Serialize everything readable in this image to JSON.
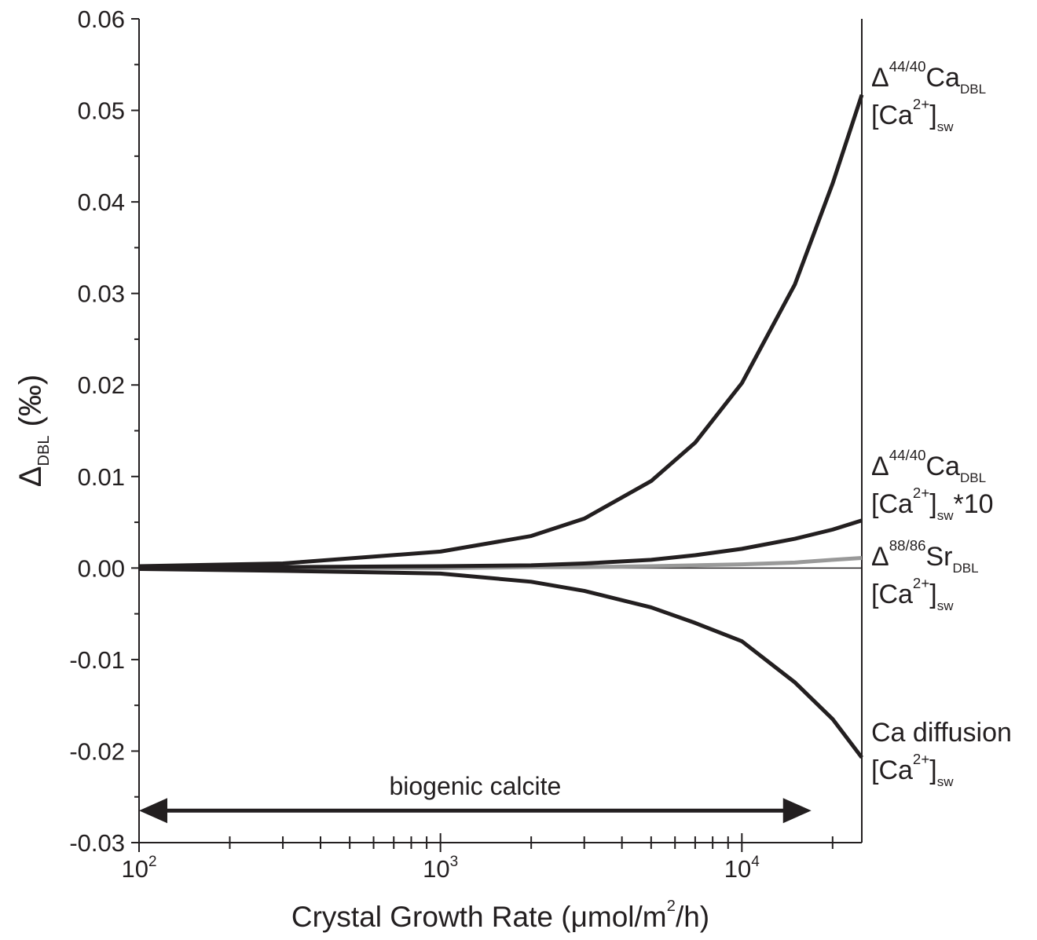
{
  "chart_data": {
    "type": "line",
    "x_label": [
      {
        "text": "Crystal Growth Rate (μmol/m"
      },
      {
        "sup": "2"
      },
      {
        "text": "/h)"
      }
    ],
    "y_label": [
      {
        "text": "Δ"
      },
      {
        "sub": "DBL"
      },
      {
        "text": " (‰)"
      }
    ],
    "xscale": "log",
    "xlim": [
      100,
      25000
    ],
    "ylim": [
      -0.03,
      0.06
    ],
    "xticks": [
      {
        "value": 100,
        "label": "10",
        "sup": "2"
      },
      {
        "value": 1000,
        "label": "10",
        "sup": "3"
      },
      {
        "value": 10000,
        "label": "10",
        "sup": "4"
      }
    ],
    "xminorticks": [
      200,
      300,
      400,
      500,
      600,
      700,
      800,
      900,
      2000,
      3000,
      4000,
      5000,
      6000,
      7000,
      8000,
      9000,
      20000
    ],
    "yticks": [
      0.06,
      0.05,
      0.04,
      0.03,
      0.02,
      0.01,
      {
        "value": 0,
        "label": "0.00"
      },
      -0.01,
      -0.02,
      -0.03
    ],
    "yminorticks": [
      0.055,
      0.045,
      0.035,
      0.025,
      0.015,
      0.005,
      -0.005,
      -0.015,
      -0.025
    ],
    "x": [
      100,
      300,
      1000,
      2000,
      3000,
      5000,
      7000,
      10000,
      15000,
      20000,
      25000
    ],
    "series": [
      {
        "label": [
          [
            {
              "text": "Δ"
            },
            {
              "sup": "44/40"
            },
            {
              "text": "Ca"
            },
            {
              "sub": "DBL"
            }
          ],
          [
            {
              "text": "[Ca"
            },
            {
              "sup": "2+"
            },
            {
              "text": "]"
            },
            {
              "sub": "sw"
            }
          ]
        ],
        "color": "#231f20",
        "values": [
          0.0002,
          0.0005,
          0.0018,
          0.0035,
          0.0054,
          0.0095,
          0.0137,
          0.0202,
          0.031,
          0.042,
          0.0517
        ]
      },
      {
        "label": [
          [
            {
              "text": "Δ"
            },
            {
              "sup": "44/40"
            },
            {
              "text": "Ca"
            },
            {
              "sub": "DBL"
            }
          ],
          [
            {
              "text": "[Ca"
            },
            {
              "sup": "2+"
            },
            {
              "text": "]"
            },
            {
              "sub": "sw"
            },
            {
              "text": "*10"
            }
          ]
        ],
        "color": "#231f20",
        "values": [
          0.0001,
          0.0001,
          0.0002,
          0.0003,
          0.0005,
          0.0009,
          0.0014,
          0.0021,
          0.0032,
          0.0042,
          0.0052
        ]
      },
      {
        "label": [
          [
            {
              "text": "Δ"
            },
            {
              "sup": "88/86"
            },
            {
              "text": "Sr"
            },
            {
              "sub": "DBL"
            }
          ],
          [
            {
              "text": "[Ca"
            },
            {
              "sup": "2+"
            },
            {
              "text": "]"
            },
            {
              "sub": "sw"
            }
          ]
        ],
        "color": "#999999",
        "values": [
          0,
          0,
          0,
          0.0001,
          0.0001,
          0.0002,
          0.0003,
          0.0004,
          0.0006,
          0.0009,
          0.0011
        ]
      },
      {
        "label": [
          [
            {
              "text": "Ca diffusion"
            }
          ],
          [
            {
              "text": "[Ca"
            },
            {
              "sup": "2+"
            },
            {
              "text": "]"
            },
            {
              "sub": "sw"
            }
          ]
        ],
        "color": "#231f20",
        "values": [
          -0.0001,
          -0.0003,
          -0.0006,
          -0.0015,
          -0.0025,
          -0.0043,
          -0.006,
          -0.008,
          -0.0125,
          -0.0165,
          -0.0207
        ]
      }
    ],
    "annotation": {
      "text": "biogenic calcite",
      "x": [
        100,
        17000
      ],
      "y": -0.0265
    }
  }
}
